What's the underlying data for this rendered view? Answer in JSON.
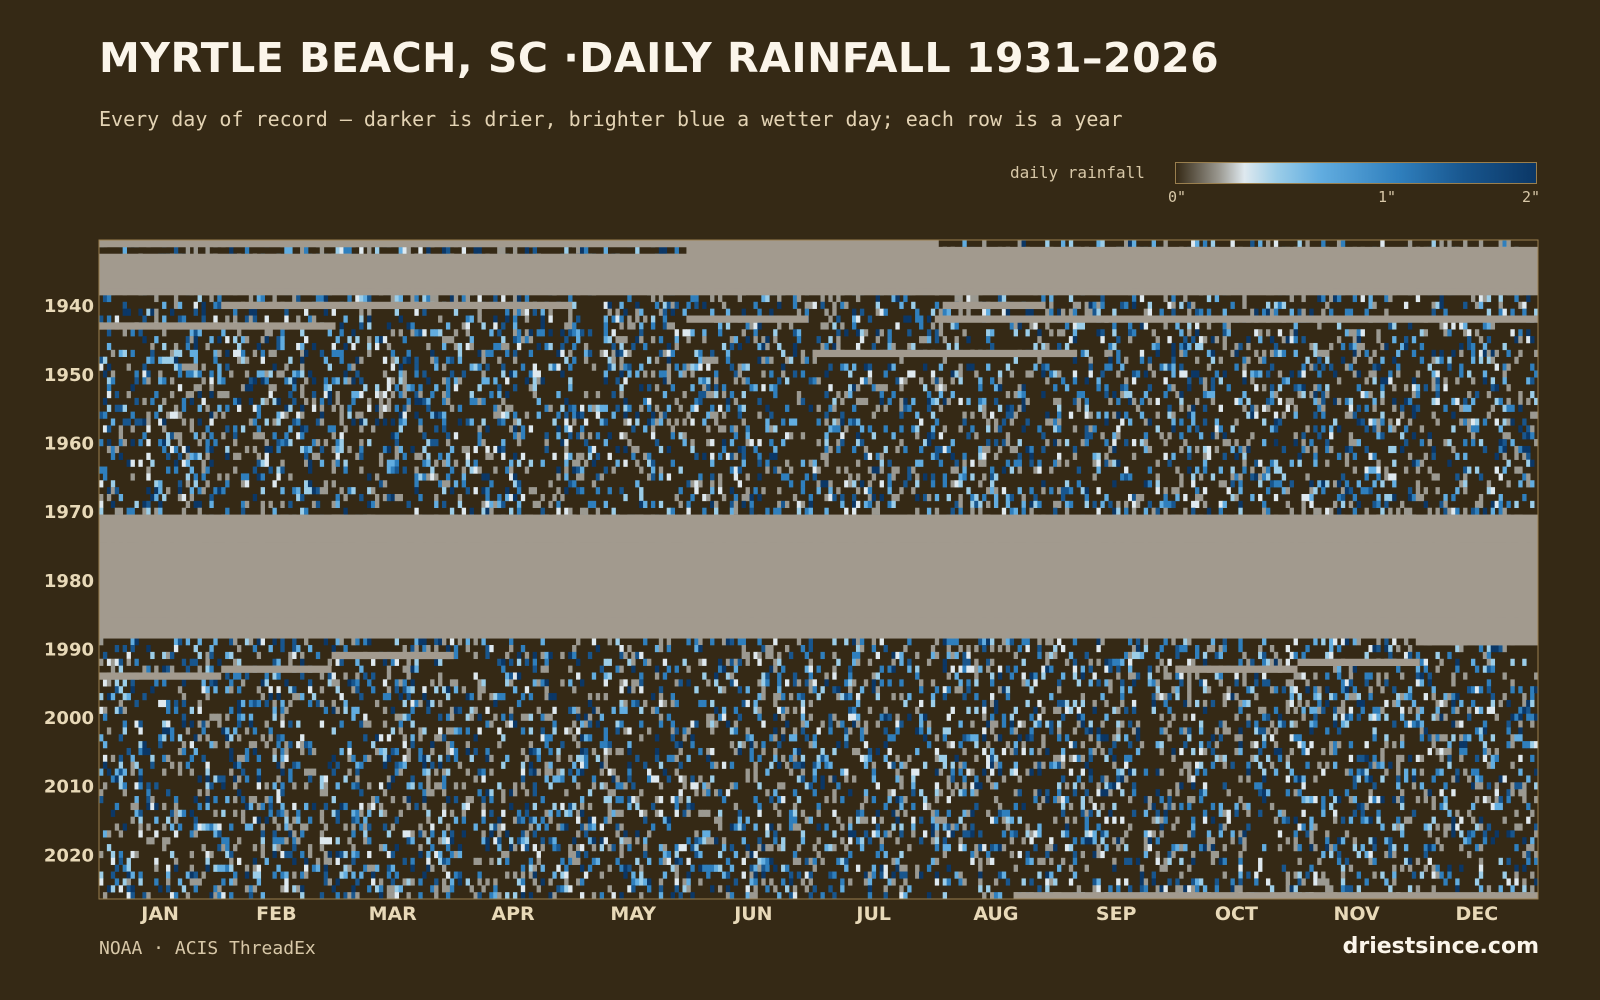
{
  "title": "MYRTLE BEACH, SC ·DAILY RAINFALL 1931–2026",
  "subtitle": "Every day of record — darker is drier, brighter blue a wetter day; each row is a year",
  "legend": {
    "label": "daily rainfall",
    "ticks": [
      "0\"",
      "1\"",
      "2\""
    ]
  },
  "source": "NOAA · ACIS ThreadEx",
  "brand": "driestsince.com",
  "colors": {
    "background": "#352915",
    "missing": "#a29a8e",
    "frame": "#9a7f4e",
    "scale": [
      "#352915",
      "#9b9991",
      "#dfe9ef",
      "#9bcde8",
      "#62ade0",
      "#2f7fbd",
      "#18568e",
      "#0b3766"
    ]
  },
  "chart_data": {
    "type": "heatmap",
    "x_axis": "day of year",
    "y_axis": "year",
    "year_range": [
      1931,
      2026
    ],
    "month_labels": [
      "JAN",
      "FEB",
      "MAR",
      "APR",
      "MAY",
      "JUN",
      "JUL",
      "AUG",
      "SEP",
      "OCT",
      "NOV",
      "DEC"
    ],
    "year_ticks": [
      "1940",
      "1950",
      "1960",
      "1970",
      "1980",
      "1990",
      "2000",
      "2010",
      "2020"
    ],
    "value_range_inches": [
      0,
      2
    ],
    "missing_periods": [
      {
        "year": 1931,
        "start_day": 1,
        "end_day": 213
      },
      {
        "year": 1933,
        "start_day": 1,
        "end_day": 365
      },
      {
        "year": 1934,
        "start_day": 1,
        "end_day": 365
      },
      {
        "year": 1935,
        "start_day": 1,
        "end_day": 365
      },
      {
        "year": 1936,
        "start_day": 1,
        "end_day": 365
      },
      {
        "year": 1937,
        "start_day": 1,
        "end_day": 365
      },
      {
        "year": 1938,
        "start_day": 1,
        "end_day": 365
      },
      {
        "year": 1932,
        "start_day": 150,
        "end_day": 365
      },
      {
        "year": 1940,
        "start_day": 32,
        "end_day": 120
      },
      {
        "year": 1940,
        "start_day": 215,
        "end_day": 240
      },
      {
        "year": 1942,
        "start_day": 150,
        "end_day": 180
      },
      {
        "year": 1942,
        "start_day": 213,
        "end_day": 365
      },
      {
        "year": 1943,
        "start_day": 1,
        "end_day": 60
      },
      {
        "year": 1947,
        "start_day": 182,
        "end_day": 248
      },
      {
        "year": 1971,
        "start_day": 1,
        "end_day": 365
      },
      {
        "year": 1972,
        "start_day": 1,
        "end_day": 365
      },
      {
        "year": 1973,
        "start_day": 1,
        "end_day": 365
      },
      {
        "year": 1974,
        "start_day": 1,
        "end_day": 365
      },
      {
        "year": 1975,
        "start_day": 1,
        "end_day": 365
      },
      {
        "year": 1976,
        "start_day": 1,
        "end_day": 365
      },
      {
        "year": 1977,
        "start_day": 1,
        "end_day": 365
      },
      {
        "year": 1978,
        "start_day": 1,
        "end_day": 365
      },
      {
        "year": 1979,
        "start_day": 1,
        "end_day": 365
      },
      {
        "year": 1980,
        "start_day": 1,
        "end_day": 365
      },
      {
        "year": 1981,
        "start_day": 1,
        "end_day": 365
      },
      {
        "year": 1982,
        "start_day": 1,
        "end_day": 365
      },
      {
        "year": 1983,
        "start_day": 1,
        "end_day": 365
      },
      {
        "year": 1984,
        "start_day": 1,
        "end_day": 365
      },
      {
        "year": 1985,
        "start_day": 1,
        "end_day": 365
      },
      {
        "year": 1986,
        "start_day": 1,
        "end_day": 365
      },
      {
        "year": 1987,
        "start_day": 1,
        "end_day": 365
      },
      {
        "year": 1988,
        "start_day": 1,
        "end_day": 365
      },
      {
        "year": 1989,
        "start_day": 335,
        "end_day": 365
      },
      {
        "year": 1991,
        "start_day": 60,
        "end_day": 90
      },
      {
        "year": 1992,
        "start_day": 305,
        "end_day": 335
      },
      {
        "year": 1993,
        "start_day": 32,
        "end_day": 59
      },
      {
        "year": 1993,
        "start_day": 274,
        "end_day": 304
      },
      {
        "year": 1994,
        "start_day": 1,
        "end_day": 31
      },
      {
        "year": 2026,
        "start_day": 233,
        "end_day": 365
      }
    ]
  }
}
